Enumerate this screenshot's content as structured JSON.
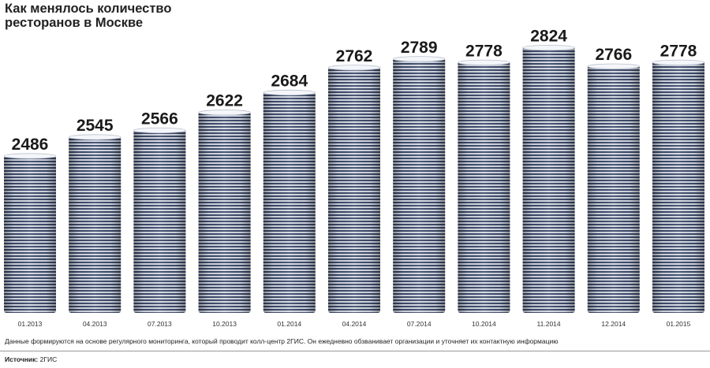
{
  "title": "Как менялось количество ресторанов в Москве",
  "note": "Данные формируются на основе регулярного мониторинга, который проводит колл-центр 2ГИС. Он ежедневно обзванивает организации и уточняет их контактную информацию",
  "source": {
    "label": "Источник:",
    "value": "2ГИС"
  },
  "colors": {
    "plate_dark": "#3c4a6a",
    "plate_light": "#d8dce6",
    "rim": "#f4f6fa"
  },
  "chart_data": {
    "type": "bar",
    "title": "Как менялось количество ресторанов в Москве",
    "categories": [
      "01.2013",
      "04.2013",
      "07.2013",
      "10.2013",
      "01.2014",
      "04.2014",
      "07.2014",
      "10.2014",
      "11.2014",
      "12.2014",
      "01.2015"
    ],
    "values": [
      2486,
      2545,
      2566,
      2622,
      2684,
      2762,
      2789,
      2778,
      2824,
      2766,
      2778
    ],
    "xlabel": "",
    "ylabel": "",
    "grid": false,
    "legend": "none"
  }
}
